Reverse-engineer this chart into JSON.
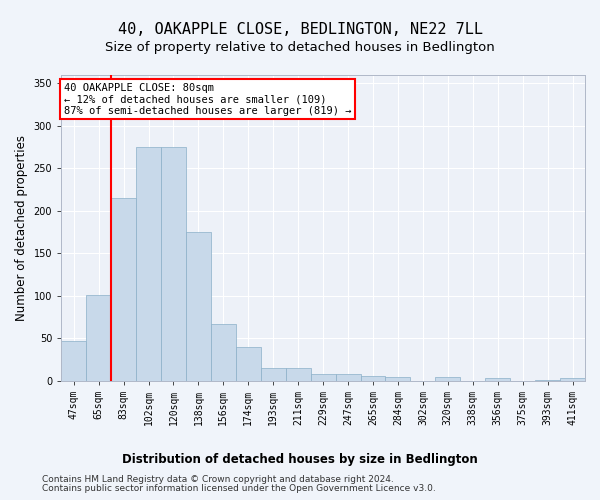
{
  "title": "40, OAKAPPLE CLOSE, BEDLINGTON, NE22 7LL",
  "subtitle": "Size of property relative to detached houses in Bedlington",
  "xlabel": "Distribution of detached houses by size in Bedlington",
  "ylabel": "Number of detached properties",
  "footer_line1": "Contains HM Land Registry data © Crown copyright and database right 2024.",
  "footer_line2": "Contains public sector information licensed under the Open Government Licence v3.0.",
  "annotation_line1": "40 OAKAPPLE CLOSE: 80sqm",
  "annotation_line2": "← 12% of detached houses are smaller (109)",
  "annotation_line3": "87% of semi-detached houses are larger (819) →",
  "bar_labels": [
    "47sqm",
    "65sqm",
    "83sqm",
    "102sqm",
    "120sqm",
    "138sqm",
    "156sqm",
    "174sqm",
    "193sqm",
    "211sqm",
    "229sqm",
    "247sqm",
    "265sqm",
    "284sqm",
    "302sqm",
    "320sqm",
    "338sqm",
    "356sqm",
    "375sqm",
    "393sqm",
    "411sqm"
  ],
  "bar_values": [
    47,
    101,
    215,
    275,
    275,
    175,
    67,
    40,
    15,
    15,
    8,
    8,
    5,
    4,
    0,
    4,
    0,
    3,
    0,
    1,
    3
  ],
  "bar_color": "#c8d9ea",
  "bar_edge_color": "#8aafc8",
  "red_line_x": 1.5,
  "ylim": [
    0,
    360
  ],
  "yticks": [
    0,
    50,
    100,
    150,
    200,
    250,
    300,
    350
  ],
  "background_color": "#f0f4fa",
  "plot_bg_color": "#edf1f8",
  "annotation_box_color": "white",
  "annotation_box_edge": "red",
  "red_line_color": "red",
  "title_fontsize": 11,
  "subtitle_fontsize": 9.5,
  "axis_label_fontsize": 8.5,
  "tick_fontsize": 7,
  "footer_fontsize": 6.5,
  "ann_fontsize": 7.5
}
